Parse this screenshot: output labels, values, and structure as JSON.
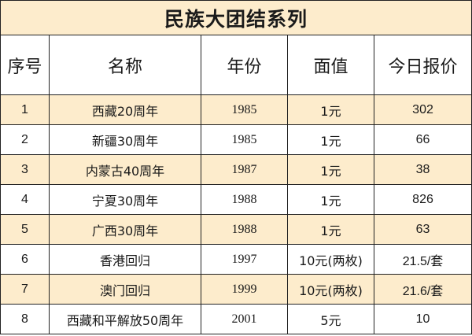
{
  "title": "民族大团结系列",
  "columns": [
    "序号",
    "名称",
    "年份",
    "面值",
    "今日报价"
  ],
  "rows": [
    {
      "index": "1",
      "name": "西藏20周年",
      "year": "1985",
      "face_value": "1元",
      "price": "302"
    },
    {
      "index": "2",
      "name": "新疆30周年",
      "year": "1985",
      "face_value": "1元",
      "price": "66"
    },
    {
      "index": "3",
      "name": "内蒙古40周年",
      "year": "1987",
      "face_value": "1元",
      "price": "38"
    },
    {
      "index": "4",
      "name": "宁夏30周年",
      "year": "1988",
      "face_value": "1元",
      "price": "826"
    },
    {
      "index": "5",
      "name": "广西30周年",
      "year": "1988",
      "face_value": "1元",
      "price": "63"
    },
    {
      "index": "6",
      "name": "香港回归",
      "year": "1997",
      "face_value": "10元(两枚)",
      "price": "21.5/套"
    },
    {
      "index": "7",
      "name": "澳门回归",
      "year": "1999",
      "face_value": "10元(两枚)",
      "price": "21.6/套"
    },
    {
      "index": "8",
      "name": "西藏和平解放50周年",
      "year": "2001",
      "face_value": "5元",
      "price": "10"
    }
  ],
  "colors": {
    "shaded_row": "#fdeccc",
    "plain_row": "#ffffff",
    "border": "#222222"
  }
}
